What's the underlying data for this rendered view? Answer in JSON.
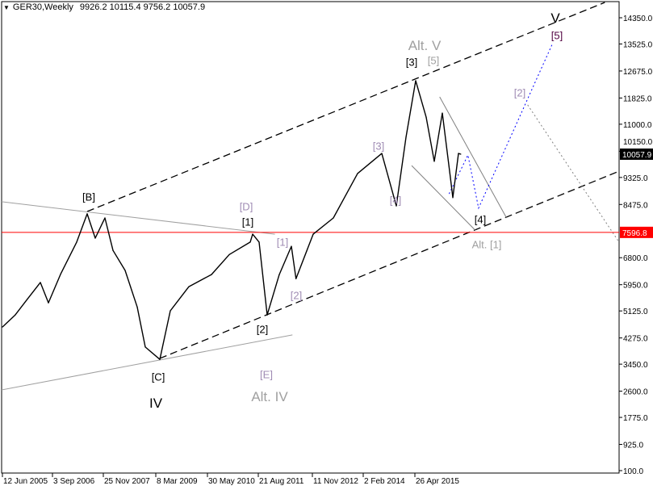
{
  "header": {
    "symbol": "GER30,Weekly",
    "ohlc": "9926.2 10115.4 9756.2 10057.9",
    "collapse_icon": "triangle-down-icon"
  },
  "chart_data": {
    "type": "line",
    "title": "GER30,Weekly",
    "ylim": [
      100,
      14350
    ],
    "grid": false,
    "y_ticks": [
      "14350.0",
      "13525.0",
      "12675.0",
      "11825.0",
      "11000.0",
      "10150.0",
      "9325.0",
      "8475.0",
      "6800.0",
      "5950.0",
      "5125.0",
      "4275.0",
      "3450.0",
      "2600.0",
      "1775.0",
      "925.0",
      "100.0"
    ],
    "x_ticks": [
      "12 Jun 2005",
      "3 Sep 2006",
      "25 Nov 2007",
      "8 Mar 2009",
      "30 May 2010",
      "21 Aug 2011",
      "11 Nov 2012",
      "2 Feb 2014",
      "26 Apr 2015"
    ],
    "current_price": {
      "label": "10057.9",
      "value": 10057.9,
      "color": "#000000"
    },
    "horizontal_level": {
      "label": "7596.8",
      "value": 7596.8,
      "color": "#ff0000"
    },
    "series": [
      {
        "color": "#000000",
        "points": [
          [
            "2005-06-12",
            4620
          ],
          [
            "2005-10-01",
            5000
          ],
          [
            "2006-01-15",
            5500
          ],
          [
            "2006-05-07",
            6020
          ],
          [
            "2006-07-16",
            5380
          ],
          [
            "2006-11-01",
            6300
          ],
          [
            "2007-03-18",
            7290
          ],
          [
            "2007-06-17",
            8180
          ],
          [
            "2007-08-26",
            7415
          ],
          [
            "2007-11-18",
            8050
          ],
          [
            "2008-01-27",
            7030
          ],
          [
            "2008-05-11",
            6400
          ],
          [
            "2008-08-24",
            5250
          ],
          [
            "2008-11-02",
            3990
          ],
          [
            "2009-03-08",
            3600
          ],
          [
            "2009-06-07",
            5130
          ],
          [
            "2009-11-15",
            5890
          ],
          [
            "2010-05-30",
            6270
          ],
          [
            "2010-11-01",
            6900
          ],
          [
            "2011-05-01",
            7290
          ],
          [
            "2011-05-22",
            7540
          ],
          [
            "2011-07-17",
            7290
          ],
          [
            "2011-09-25",
            5000
          ],
          [
            "2012-01-08",
            6270
          ],
          [
            "2012-04-22",
            7160
          ],
          [
            "2012-06-01",
            6140
          ],
          [
            "2012-10-28",
            7540
          ],
          [
            "2013-04-21",
            8050
          ],
          [
            "2013-11-17",
            9450
          ],
          [
            "2014-06-15",
            10080
          ],
          [
            "2014-10-19",
            8430
          ],
          [
            "2015-01-11",
            10590
          ],
          [
            "2015-04-05",
            12370
          ],
          [
            "2015-07-05",
            11220
          ],
          [
            "2015-09-13",
            9830
          ],
          [
            "2015-11-22",
            11350
          ],
          [
            "2016-01-31",
            9320
          ],
          [
            "2016-02-21",
            8690
          ],
          [
            "2016-04-10",
            10080
          ],
          [
            "2016-04-30",
            10057.9
          ]
        ]
      }
    ],
    "trendlines": [
      {
        "style": "dashed",
        "color": "#000000",
        "points": [
          [
            "2007-06-17",
            8253
          ],
          [
            "2019-10-01",
            14832
          ]
        ]
      },
      {
        "style": "dashed",
        "color": "#000000",
        "points": [
          [
            "2009-03-08",
            3630
          ],
          [
            "2020-02-01",
            9520
          ]
        ]
      },
      {
        "style": "solid",
        "color": "#a0a0a0",
        "points": [
          [
            "2005-06-05",
            8560
          ],
          [
            "2011-12-01",
            7540
          ]
        ]
      },
      {
        "style": "solid",
        "color": "#a0a0a0",
        "points": [
          [
            "2005-06-05",
            2640
          ],
          [
            "2012-05-01",
            4370
          ]
        ]
      },
      {
        "style": "solid",
        "color": "#808080",
        "points": [
          [
            "2015-10-30",
            11860
          ],
          [
            "2017-06-01",
            8050
          ]
        ]
      },
      {
        "style": "solid",
        "color": "#808080",
        "points": [
          [
            "2015-03-01",
            9700
          ],
          [
            "2016-09-01",
            7670
          ]
        ]
      },
      {
        "style": "dotted",
        "color": "#0000ff",
        "points": [
          [
            "2016-01-20",
            8810
          ],
          [
            "2016-07-01",
            10030
          ],
          [
            "2016-10-01",
            8360
          ],
          [
            "2018-07-01",
            13510
          ]
        ]
      },
      {
        "style": "dotted",
        "color": "#808080",
        "points": [
          [
            "2017-12-01",
            11610
          ],
          [
            "2020-02-01",
            7290
          ]
        ]
      }
    ],
    "annotations": [
      {
        "text": "[B]",
        "color": "#000000"
      },
      {
        "text": "[D]",
        "color": "#a08cb4"
      },
      {
        "text": "[1]",
        "color": "#000000"
      },
      {
        "text": "[1]",
        "color": "#a08cb4"
      },
      {
        "text": "[2]",
        "color": "#a08cb4"
      },
      {
        "text": "[2]",
        "color": "#000000"
      },
      {
        "text": "[E]",
        "color": "#a08cb4"
      },
      {
        "text": "Alt. IV",
        "color": "#a0a0a0"
      },
      {
        "text": "[C]",
        "color": "#000000"
      },
      {
        "text": "IV",
        "color": "#000000"
      },
      {
        "text": "[3]",
        "color": "#a08cb4"
      },
      {
        "text": "[4]",
        "color": "#a08cb4"
      },
      {
        "text": "Alt. V",
        "color": "#a0a0a0"
      },
      {
        "text": "[3]",
        "color": "#000000"
      },
      {
        "text": "[5]",
        "color": "#a0a0a0"
      },
      {
        "text": "[4]",
        "color": "#000000"
      },
      {
        "text": "Alt. [1]",
        "color": "#a0a0a0"
      },
      {
        "text": "[2]",
        "color": "#a08cb4"
      },
      {
        "text": "V",
        "color": "#000000"
      },
      {
        "text": "[5]",
        "color": "#500040"
      }
    ]
  }
}
